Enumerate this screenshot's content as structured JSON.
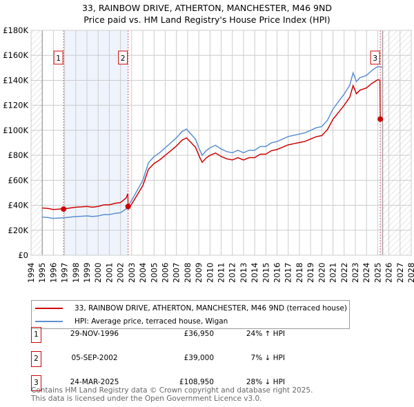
{
  "title": "33, RAINBOW DRIVE, ATHERTON, MANCHESTER, M46 9ND",
  "subtitle": "Price paid vs. HM Land Registry's House Price Index (HPI)",
  "chart_data": {
    "type": "line",
    "xlim": [
      1994,
      2028
    ],
    "ylim": [
      0,
      180000
    ],
    "x_ticks": [
      "1994",
      "1995",
      "1996",
      "1997",
      "1998",
      "1999",
      "2000",
      "2001",
      "2002",
      "2003",
      "2004",
      "2005",
      "2006",
      "2007",
      "2008",
      "2009",
      "2010",
      "2011",
      "2012",
      "2013",
      "2014",
      "2015",
      "2016",
      "2017",
      "2018",
      "2019",
      "2020",
      "2021",
      "2022",
      "2023",
      "2024",
      "2025",
      "2026",
      "2027",
      "2028"
    ],
    "y_ticks": [
      {
        "v": 0,
        "label": "£0"
      },
      {
        "v": 20000,
        "label": "£20K"
      },
      {
        "v": 40000,
        "label": "£40K"
      },
      {
        "v": 60000,
        "label": "£60K"
      },
      {
        "v": 80000,
        "label": "£80K"
      },
      {
        "v": 100000,
        "label": "£100K"
      },
      {
        "v": 120000,
        "label": "£120K"
      },
      {
        "v": 140000,
        "label": "£140K"
      },
      {
        "v": 160000,
        "label": "£160K"
      },
      {
        "v": 180000,
        "label": "£180K"
      }
    ],
    "grid": true,
    "hpi": {
      "name": "HPI: Average price, terraced house, Wigan",
      "color": "#5b8fd0",
      "x": [
        1995,
        1995.5,
        1996,
        1996.5,
        1997,
        1997.5,
        1998,
        1998.5,
        1999,
        1999.5,
        2000,
        2000.5,
        2001,
        2001.5,
        2002,
        2002.5,
        2002.7,
        2003,
        2003.5,
        2004,
        2004.5,
        2005,
        2005.5,
        2006,
        2006.5,
        2007,
        2007.5,
        2007.9,
        2008.3,
        2008.7,
        2009.1,
        2009.3,
        2009.7,
        2010,
        2010.5,
        2011,
        2011.5,
        2012,
        2012.5,
        2013,
        2013.5,
        2014,
        2014.5,
        2015,
        2015.5,
        2016,
        2016.5,
        2017,
        2017.5,
        2018,
        2018.5,
        2019,
        2019.5,
        2020,
        2020.5,
        2021,
        2021.5,
        2022,
        2022.5,
        2022.8,
        2023.1,
        2023.4,
        2024,
        2024.5,
        2025,
        2025.4
      ],
      "y": [
        30500,
        30200,
        29500,
        29800,
        30000,
        30500,
        31000,
        31200,
        31500,
        31000,
        31500,
        32500,
        32500,
        33500,
        34000,
        37000,
        40000,
        44000,
        52000,
        60000,
        74000,
        79000,
        82000,
        86000,
        90000,
        94000,
        99000,
        101000,
        97000,
        93000,
        84000,
        80000,
        84000,
        86000,
        88000,
        85000,
        83000,
        82000,
        84000,
        82000,
        84000,
        84000,
        87000,
        87000,
        90000,
        91000,
        93000,
        95000,
        96000,
        97000,
        98000,
        100000,
        102000,
        103000,
        108000,
        117000,
        123000,
        129000,
        136000,
        146000,
        139000,
        142000,
        144000,
        148000,
        151000,
        150500
      ]
    },
    "property": {
      "name": "33, RAINBOW DRIVE, ATHERTON, MANCHESTER, M46 9ND (terraced house)",
      "color": "#cc0000"
    },
    "sales": [
      {
        "id": "1",
        "x": 1996.91,
        "price": 36950,
        "date": "29-NOV-1996",
        "price_label": "£36,950",
        "hpi": "24% ↑ HPI"
      },
      {
        "id": "2",
        "x": 2002.68,
        "price": 39000,
        "date": "05-SEP-2002",
        "price_label": "£39,000",
        "hpi": "7% ↓ HPI"
      },
      {
        "id": "3",
        "x": 2025.23,
        "price": 108950,
        "date": "24-MAR-2025",
        "price_label": "£108,950",
        "hpi": "28% ↓ HPI"
      }
    ]
  },
  "legend": {
    "property": "33, RAINBOW DRIVE, ATHERTON, MANCHESTER, M46 9ND (terraced house)",
    "hpi": "HPI: Average price, terraced house, Wigan"
  },
  "footer": {
    "line1": "Contains HM Land Registry data © Crown copyright and database right 2025.",
    "line2": "This data is licensed under the Open Government Licence v3.0."
  }
}
